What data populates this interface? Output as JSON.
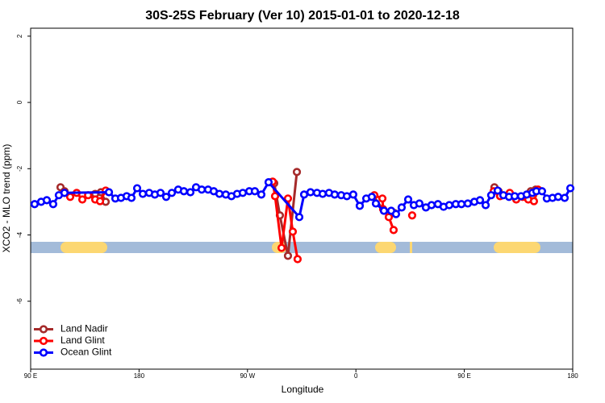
{
  "chart_data": {
    "type": "line",
    "title": "30S-25S February (Ver 10)   2015-01-01 to 2020-12-18",
    "xlabel": "Longitude",
    "ylabel": "XCO2 - MLO trend (ppm)",
    "xlim": [
      90,
      540
    ],
    "ylim": [
      -8.05,
      2.24
    ],
    "xticks": [
      {
        "value": 90,
        "label": "90 E"
      },
      180,
      {
        "value": 270,
        "label": "90 W"
      },
      {
        "value": 360,
        "label": "0"
      },
      {
        "value": 450,
        "label": "90 E"
      },
      {
        "value": 540,
        "label": "180"
      }
    ],
    "yticks": [
      2,
      0,
      -2,
      -4,
      -6
    ],
    "grid": false,
    "legend": "bottom-left",
    "series": [
      {
        "name": "Land Nadir",
        "color": "#a52a2a",
        "x": [
          114.8,
          118.1,
          130,
          143.6,
          148.3,
          152.3,
          200,
          289.6,
          292.2,
          296.9,
          303.6,
          311.0,
          340,
          374.6,
          383.3,
          392.0,
          430,
          475.0,
          478.4,
          490,
          505.2,
          509.2
        ],
        "values": [
          -2.56,
          -2.68,
          null,
          -2.76,
          -2.71,
          -3.0,
          null,
          -2.41,
          -2.44,
          -3.41,
          -4.63,
          -2.1,
          null,
          -2.83,
          -3.27,
          -3.34,
          null,
          -2.56,
          -2.68,
          null,
          -2.68,
          -2.63
        ]
      },
      {
        "name": "Land Glint",
        "color": "#ff0000",
        "x": [
          118.1,
          122.8,
          128.2,
          132.9,
          137.7,
          143.6,
          147.6,
          152.3,
          200,
          290.9,
          292.9,
          298.3,
          303.6,
          307.6,
          311.6,
          340,
          375.3,
          382.0,
          382.6,
          387.3,
          391.3,
          400,
          406.7,
          440,
          474.4,
          479.7,
          487.7,
          493.1,
          498.4,
          503.1,
          507.8,
          511.2
        ],
        "values": [
          -2.73,
          -2.85,
          -2.73,
          -2.93,
          -2.8,
          -2.93,
          -2.98,
          -2.66,
          null,
          -2.39,
          -2.83,
          -4.39,
          -2.9,
          -3.9,
          -4.73,
          null,
          -2.8,
          -2.9,
          -3.22,
          -3.46,
          -3.85,
          null,
          -3.41,
          null,
          -2.68,
          -2.83,
          -2.73,
          -2.93,
          -2.85,
          -2.93,
          -2.98,
          -2.63
        ]
      },
      {
        "name": "Ocean Glint",
        "color": "#0000ff",
        "x": [
          93.3,
          98.7,
          103.4,
          108.7,
          113.4,
          118.1,
          155.0,
          160.3,
          165.0,
          169.7,
          173.7,
          178.4,
          183.1,
          188.4,
          193.1,
          197.8,
          202.5,
          207.2,
          212.5,
          217.2,
          222.6,
          227.3,
          232.0,
          237.3,
          242.0,
          246.7,
          252.0,
          256.7,
          261.4,
          266.1,
          271.5,
          276.1,
          281.5,
          287.5,
          313.0,
          317.0,
          322.3,
          327.7,
          332.4,
          337.7,
          342.4,
          347.8,
          352.5,
          357.8,
          363.2,
          368.6,
          373.2,
          376.6,
          383.3,
          389.3,
          393.3,
          398.0,
          403.4,
          408.1,
          412.7,
          418.1,
          422.8,
          428.1,
          432.8,
          437.5,
          442.9,
          447.6,
          452.9,
          458.3,
          463.0,
          467.7,
          472.3,
          477.7,
          482.4,
          487.1,
          491.8,
          497.1,
          501.8,
          506.5,
          509.8,
          514.5,
          518.5,
          523.2,
          527.9,
          533.3,
          538.0
        ],
        "values": [
          -3.07,
          -3.0,
          -2.95,
          -3.07,
          -2.8,
          -2.73,
          -2.71,
          -2.9,
          -2.88,
          -2.83,
          -2.88,
          -2.59,
          -2.76,
          -2.73,
          -2.78,
          -2.73,
          -2.85,
          -2.73,
          -2.63,
          -2.68,
          -2.71,
          -2.56,
          -2.63,
          -2.63,
          -2.68,
          -2.76,
          -2.78,
          -2.83,
          -2.76,
          -2.73,
          -2.68,
          -2.68,
          -2.78,
          -2.41,
          -3.46,
          -2.78,
          -2.71,
          -2.73,
          -2.76,
          -2.73,
          -2.78,
          -2.8,
          -2.83,
          -2.78,
          -3.12,
          -2.9,
          -2.85,
          -3.05,
          -3.27,
          -3.27,
          -3.37,
          -3.17,
          -2.93,
          -3.1,
          -3.05,
          -3.17,
          -3.1,
          -3.07,
          -3.15,
          -3.1,
          -3.07,
          -3.07,
          -3.05,
          -3.0,
          -2.95,
          -3.1,
          -2.8,
          -2.66,
          -2.8,
          -2.85,
          -2.83,
          -2.83,
          -2.78,
          -2.73,
          -2.68,
          -2.68,
          -2.9,
          -2.88,
          -2.85,
          -2.88,
          -2.59
        ]
      }
    ]
  }
}
